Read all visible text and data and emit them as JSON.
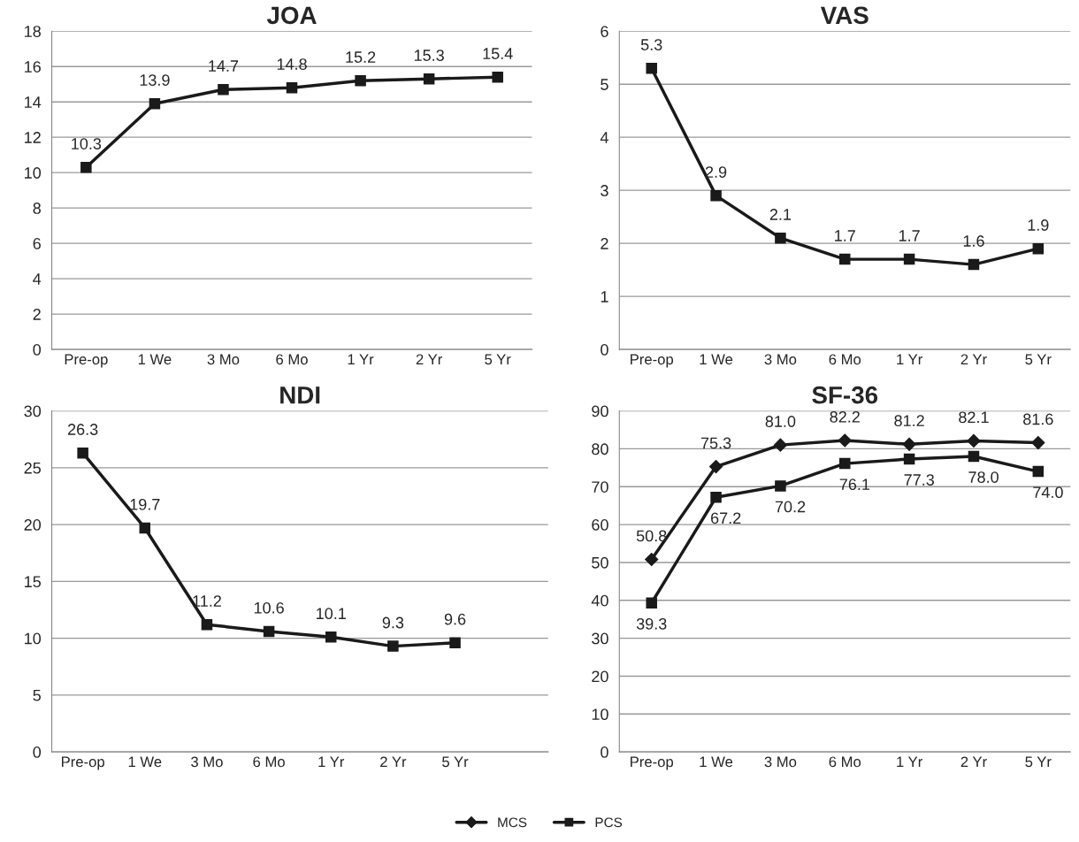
{
  "chart_data": [
    {
      "type": "line",
      "title": "JOA",
      "categories": [
        "Pre-op",
        "1 We",
        "3 Mo",
        "6 Mo",
        "1 Yr",
        "2 Yr",
        "5 Yr"
      ],
      "series": [
        {
          "color": "#1a1a1a",
          "marker": "square",
          "values": [
            10.3,
            13.9,
            14.7,
            14.8,
            15.2,
            15.3,
            15.4
          ]
        }
      ],
      "ylim": [
        0,
        18
      ],
      "yticks": [
        0,
        2,
        4,
        6,
        8,
        10,
        12,
        14,
        16,
        18
      ],
      "grid": "y",
      "data_labels": true,
      "legend": false
    },
    {
      "type": "line",
      "title": "VAS",
      "categories": [
        "Pre-op",
        "1 We",
        "3 Mo",
        "6 Mo",
        "1 Yr",
        "2 Yr",
        "5 Yr"
      ],
      "series": [
        {
          "color": "#1a1a1a",
          "marker": "square",
          "values": [
            5.3,
            2.9,
            2.1,
            1.7,
            1.7,
            1.6,
            1.9
          ]
        }
      ],
      "ylim": [
        0,
        6
      ],
      "yticks": [
        0,
        1,
        2,
        3,
        4,
        5,
        6
      ],
      "grid": "y",
      "data_labels": true,
      "legend": false
    },
    {
      "type": "line",
      "title": "NDI",
      "categories": [
        "Pre-op",
        "1 We",
        "3 Mo",
        "6 Mo",
        "1 Yr",
        "2 Yr",
        "5 Yr",
        null
      ],
      "series": [
        {
          "color": "#1a1a1a",
          "marker": "square",
          "values": [
            26.3,
            19.7,
            11.2,
            10.6,
            10.1,
            9.3,
            9.6,
            null
          ]
        }
      ],
      "ylim": [
        0,
        30
      ],
      "yticks": [
        0,
        5,
        10,
        15,
        20,
        25,
        30
      ],
      "grid": "y",
      "data_labels": true,
      "legend": false
    },
    {
      "type": "line",
      "title": "SF-36",
      "categories": [
        "Pre-op",
        "1 We",
        "3 Mo",
        "6 Mo",
        "1 Yr",
        "2 Yr",
        "5 Yr"
      ],
      "series": [
        {
          "name": "MCS",
          "color": "#1a1a1a",
          "marker": "diamond",
          "values": [
            50.8,
            75.3,
            81.0,
            82.2,
            81.2,
            82.1,
            81.6
          ],
          "value_labels": [
            "50.8",
            "75.3",
            "81.0",
            "82.2",
            "81.2",
            "82.1",
            "81.6"
          ]
        },
        {
          "name": "PCS",
          "color": "#1a1a1a",
          "marker": "square",
          "values": [
            39.3,
            67.2,
            70.2,
            76.1,
            77.3,
            78.0,
            74.0
          ],
          "value_labels": [
            "39.3",
            "67.2",
            "70.2",
            "76.1",
            "77.3",
            "78.0",
            "74.0"
          ]
        }
      ],
      "ylim": [
        0,
        90
      ],
      "yticks": [
        0,
        10,
        20,
        30,
        40,
        50,
        60,
        70,
        80,
        90
      ],
      "grid": "y",
      "legend": "bottom"
    }
  ]
}
